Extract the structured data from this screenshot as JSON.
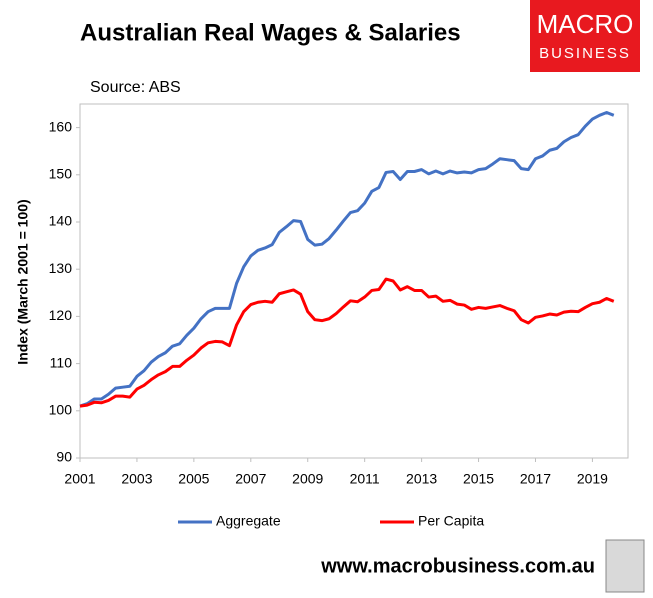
{
  "chart_data": {
    "type": "line",
    "title": "Australian Real Wages & Salaries",
    "subtitle": "Source: ABS",
    "y_label": "Index (March 2001 = 100)",
    "footer": "www.macrobusiness.com.au",
    "logo": [
      "MACRO",
      "BUSINESS"
    ],
    "x": [
      2001,
      2001.25,
      2001.5,
      2001.75,
      2002,
      2002.25,
      2002.5,
      2002.75,
      2003,
      2003.25,
      2003.5,
      2003.75,
      2004,
      2004.25,
      2004.5,
      2004.75,
      2005,
      2005.25,
      2005.5,
      2005.75,
      2006,
      2006.25,
      2006.5,
      2006.75,
      2007,
      2007.25,
      2007.5,
      2007.75,
      2008,
      2008.25,
      2008.5,
      2008.75,
      2009,
      2009.25,
      2009.5,
      2009.75,
      2010,
      2010.25,
      2010.5,
      2010.75,
      2011,
      2011.25,
      2011.5,
      2011.75,
      2012,
      2012.25,
      2012.5,
      2012.75,
      2013,
      2013.25,
      2013.5,
      2013.75,
      2014,
      2014.25,
      2014.5,
      2014.75,
      2015,
      2015.25,
      2015.5,
      2015.75,
      2016,
      2016.25,
      2016.5,
      2016.75,
      2017,
      2017.25,
      2017.5,
      2017.75,
      2018,
      2018.25,
      2018.5,
      2018.75,
      2019,
      2019.25,
      2019.5,
      2019.75
    ],
    "series": [
      {
        "name": "Aggregate",
        "color": "#4472c4",
        "values": [
          101,
          101.5,
          102.5,
          102.5,
          103.5,
          104.8,
          105,
          105.2,
          107.3,
          108.5,
          110.3,
          111.5,
          112.3,
          113.7,
          114.2,
          116,
          117.5,
          119.5,
          121,
          121.7,
          121.7,
          121.7,
          127,
          130.5,
          132.8,
          134,
          134.5,
          135.2,
          137.8,
          139,
          140.3,
          140.1,
          136.3,
          135.1,
          135.3,
          136.5,
          138.3,
          140.2,
          142,
          142.4,
          144,
          146.5,
          147.3,
          150.5,
          150.7,
          149,
          150.7,
          150.7,
          151.1,
          150.2,
          150.8,
          150.2,
          150.8,
          150.4,
          150.6,
          150.4,
          151.1,
          151.3,
          152.3,
          153.4,
          153.2,
          153,
          151.3,
          151.1,
          153.4,
          154,
          155.2,
          155.6,
          157,
          157.9,
          158.5,
          160.3,
          161.8,
          162.6,
          163.2,
          162.6
        ]
      },
      {
        "name": "Per Capita",
        "color": "#ff0000",
        "values": [
          101,
          101.2,
          101.8,
          101.7,
          102.2,
          103.1,
          103.1,
          102.9,
          104.6,
          105.4,
          106.6,
          107.6,
          108.3,
          109.4,
          109.4,
          110.7,
          111.8,
          113.3,
          114.4,
          114.7,
          114.6,
          113.8,
          118.2,
          121,
          122.5,
          123,
          123.2,
          123,
          124.8,
          125.2,
          125.6,
          124.7,
          121,
          119.3,
          119.1,
          119.5,
          120.6,
          122,
          123.3,
          123.1,
          124.1,
          125.5,
          125.7,
          127.9,
          127.5,
          125.6,
          126.3,
          125.5,
          125.5,
          124.1,
          124.3,
          123.2,
          123.4,
          122.6,
          122.4,
          121.5,
          121.9,
          121.7,
          122,
          122.3,
          121.7,
          121.2,
          119.3,
          118.6,
          119.8,
          120.1,
          120.5,
          120.3,
          120.9,
          121.1,
          121,
          121.9,
          122.7,
          123,
          123.8,
          123.2
        ]
      }
    ],
    "xlim": [
      2001,
      2020.25
    ],
    "xticks": [
      2001,
      2003,
      2005,
      2007,
      2009,
      2011,
      2013,
      2015,
      2017,
      2019
    ],
    "ylim": [
      90,
      165
    ],
    "yticks": [
      90,
      100,
      110,
      120,
      130,
      140,
      150,
      160
    ],
    "grid": false
  }
}
